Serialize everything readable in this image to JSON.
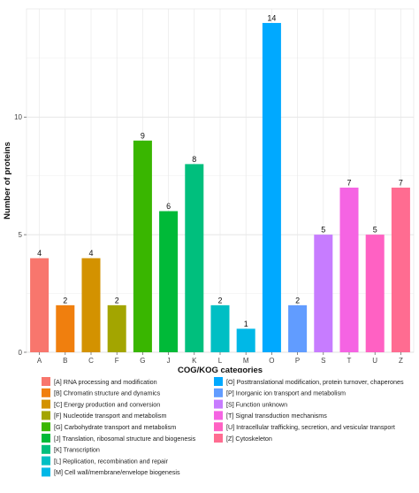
{
  "chart_data": {
    "type": "bar",
    "xlabel": "COG/KOG categories",
    "ylabel": "Number of proteins",
    "ylim": [
      0,
      14.6
    ],
    "yticks": [
      0,
      5,
      10
    ],
    "grid": true,
    "legend_position": "bottom",
    "categories": [
      "A",
      "B",
      "C",
      "F",
      "G",
      "J",
      "K",
      "L",
      "M",
      "O",
      "P",
      "S",
      "T",
      "U",
      "Z"
    ],
    "values": [
      4,
      2,
      4,
      2,
      9,
      6,
      8,
      2,
      1,
      14,
      2,
      5,
      7,
      5,
      7
    ],
    "colors": [
      "#F8766D",
      "#F07F0E",
      "#D39200",
      "#A3A500",
      "#39B600",
      "#00BA38",
      "#00BF7D",
      "#00BFC4",
      "#00B8E7",
      "#00A9FF",
      "#619CFF",
      "#C77CFF",
      "#F564E3",
      "#FF61C3",
      "#FF6C91"
    ],
    "legend": [
      "[A] RNA processing and modification",
      "[B] Chromatin structure and dynamics",
      "[C] Energy production and conversion",
      "[F] Nucleotide transport and metabolism",
      "[G] Carbohydrate transport and metabolism",
      "[J] Translation, ribosomal structure and biogenesis",
      "[K] Transcription",
      "[L] Replication, recombination and repair",
      "[M] Cell wall/membrane/envelope biogenesis",
      "[O] Posttranslational modification, protein turnover, chaperones",
      "[P] Inorganic ion transport and metabolism",
      "[S] Function unknown",
      "[T] Signal transduction mechanisms",
      "[U] Intracellular trafficking, secretion, and vesicular transport",
      "[Z] Cytoskeleton"
    ]
  }
}
